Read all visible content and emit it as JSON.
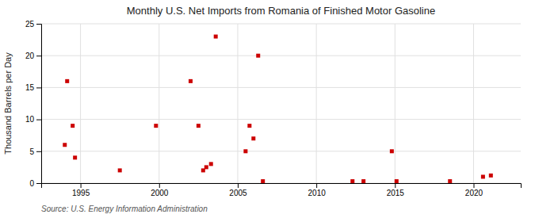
{
  "chart_data": {
    "type": "scatter",
    "title": "Monthly U.S. Net Imports from Romania of Finished Motor Gasoline",
    "ylabel": "Thousand Barrels per Day",
    "source": "Source: U.S. Energy Information Administration",
    "color": "#cc0000",
    "marker": "square",
    "grid": true,
    "xlim": [
      1992.5,
      2023
    ],
    "ylim": [
      0,
      25
    ],
    "xticks": [
      1995,
      2000,
      2005,
      2010,
      2015,
      2020
    ],
    "yticks": [
      0,
      5,
      10,
      15,
      20,
      25
    ],
    "x": [
      1994.0,
      1994.15,
      1994.5,
      1994.65,
      1997.5,
      1999.8,
      2002.0,
      2002.5,
      2002.8,
      2003.0,
      2003.3,
      2003.6,
      2005.5,
      2005.75,
      2006.0,
      2006.3,
      2006.6,
      2012.3,
      2013.0,
      2014.8,
      2015.1,
      2018.5,
      2020.6,
      2021.1
    ],
    "values": [
      6.0,
      16.0,
      9.0,
      4.0,
      2.0,
      9.0,
      16.0,
      9.0,
      2.0,
      2.5,
      3.0,
      23.0,
      5.0,
      9.0,
      7.0,
      20.0,
      0.3,
      0.3,
      0.3,
      5.0,
      0.3,
      0.3,
      1.0,
      1.2
    ]
  }
}
